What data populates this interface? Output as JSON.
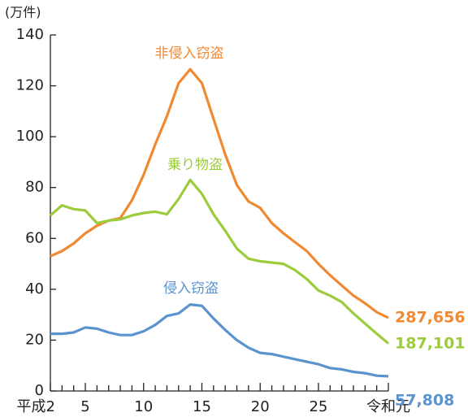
{
  "chart_data": {
    "type": "line",
    "y_label": "(万件)",
    "categories": [
      "平成2",
      null,
      null,
      "5",
      null,
      null,
      null,
      null,
      "10",
      null,
      null,
      null,
      null,
      "15",
      null,
      null,
      null,
      null,
      "20",
      null,
      null,
      null,
      null,
      "25",
      null,
      null,
      null,
      null,
      null,
      "令和元"
    ],
    "ylim": [
      0,
      140
    ],
    "yticks": [
      0,
      20,
      40,
      60,
      80,
      100,
      120,
      140
    ],
    "series": [
      {
        "name": "非侵入窃盗",
        "color": "#f08a32",
        "values": [
          53,
          55,
          58,
          62,
          65,
          67,
          68,
          75,
          85,
          97,
          108,
          121,
          126.5,
          121,
          107,
          93,
          81,
          74.5,
          72,
          66,
          62,
          58.5,
          55,
          50,
          45.5,
          41.5,
          37.5,
          34.5,
          31,
          28.7656
        ],
        "value_labels": [
          null,
          null,
          null,
          null,
          null,
          null,
          null,
          null,
          null,
          null,
          null,
          null,
          null,
          null,
          null,
          null,
          null,
          null,
          null,
          null,
          null,
          null,
          null,
          null,
          null,
          null,
          null,
          null,
          null,
          "287,656"
        ]
      },
      {
        "name": "乗り物盗",
        "color": "#9ccb3c",
        "values": [
          69,
          73,
          71.5,
          71,
          66,
          67,
          67.5,
          69,
          70,
          70.5,
          69.5,
          75.5,
          83,
          77.5,
          69.5,
          63,
          56,
          52,
          51,
          50.5,
          50,
          47.5,
          44,
          39.5,
          37.5,
          35,
          30.5,
          26.5,
          22.5,
          18.7101
        ],
        "value_labels": [
          null,
          null,
          null,
          null,
          null,
          null,
          null,
          null,
          null,
          null,
          null,
          null,
          null,
          null,
          null,
          null,
          null,
          null,
          null,
          null,
          null,
          null,
          null,
          null,
          null,
          null,
          null,
          null,
          null,
          "187,101"
        ]
      },
      {
        "name": "侵入窃盗",
        "color": "#5b93cf",
        "values": [
          22.5,
          22.5,
          23,
          25,
          24.5,
          23,
          22,
          22,
          23.5,
          26,
          29.5,
          30.5,
          34,
          33.5,
          28.5,
          24,
          20,
          17,
          15,
          14.5,
          13.5,
          12.5,
          11.5,
          10.5,
          9,
          8.5,
          7.5,
          7,
          6,
          5.7808
        ],
        "value_labels": [
          null,
          null,
          null,
          null,
          null,
          null,
          null,
          null,
          null,
          null,
          null,
          null,
          null,
          null,
          null,
          null,
          null,
          null,
          null,
          null,
          null,
          null,
          null,
          null,
          null,
          null,
          null,
          null,
          null,
          "57,808"
        ]
      }
    ]
  }
}
